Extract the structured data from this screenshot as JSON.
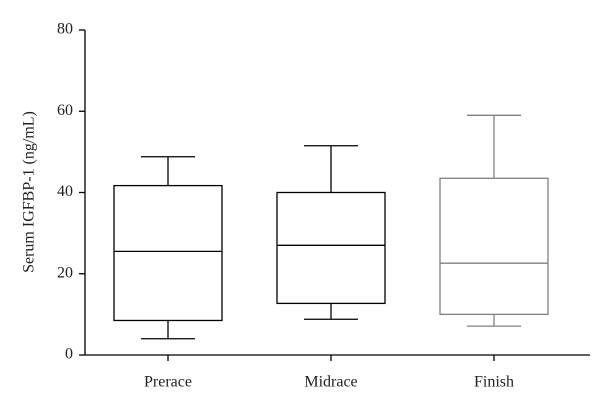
{
  "chart_data": {
    "type": "box",
    "y_label": "Serum IGFBP-1 (ng/mL)",
    "categories": [
      "Prerace",
      "Midrace",
      "Finish"
    ],
    "min": [
      4,
      8.8,
      7.1
    ],
    "q1": [
      8.5,
      12.7,
      10
    ],
    "median": [
      25.5,
      27,
      22.6
    ],
    "q3": [
      41.7,
      40,
      43.5
    ],
    "max": [
      48.8,
      51.5,
      59
    ],
    "colors": [
      "#000000",
      "#000000",
      "#808080"
    ],
    "ylim": [
      0,
      80
    ],
    "yticks": [
      0,
      20,
      40,
      60,
      80
    ]
  }
}
